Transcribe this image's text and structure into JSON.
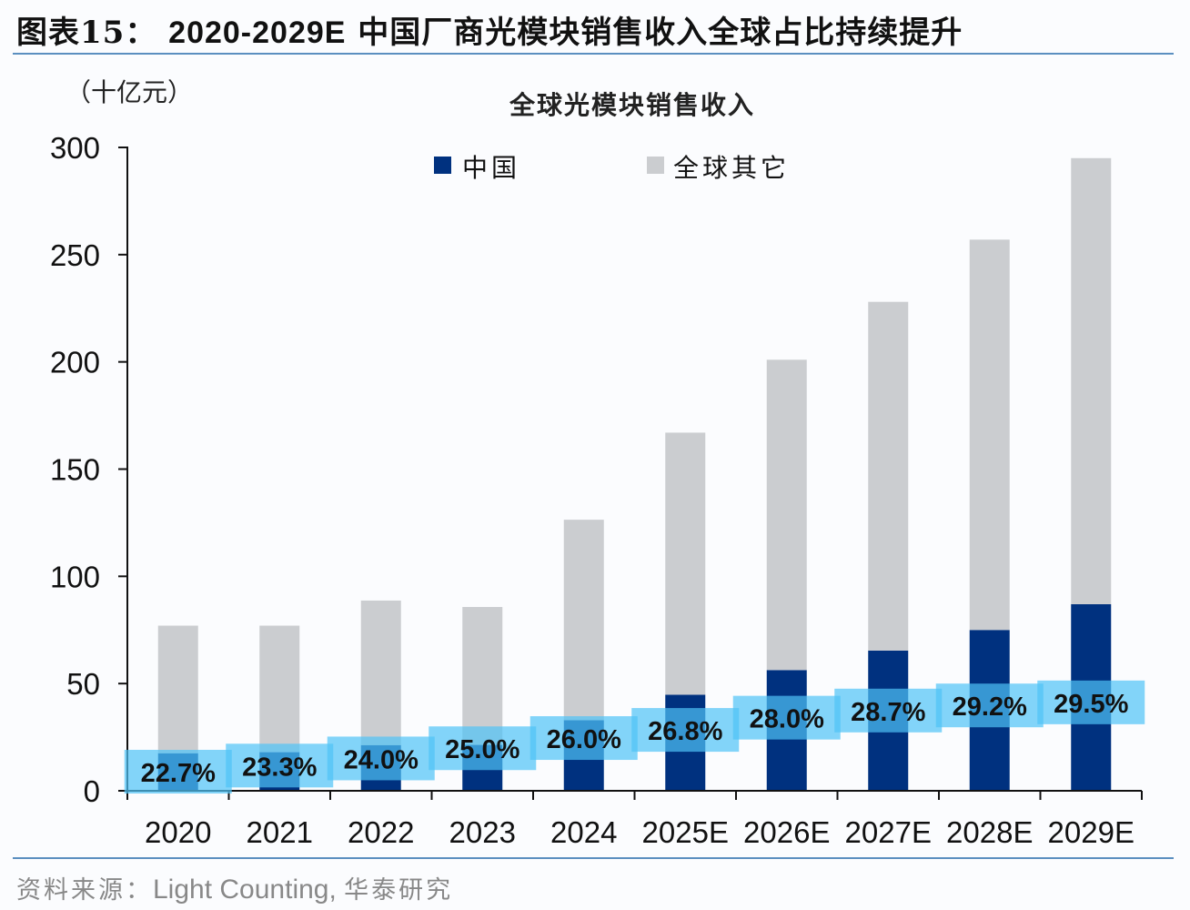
{
  "header": {
    "figure_label": "图表15：",
    "figure_title_year": "2020-2029E",
    "figure_title_text": "中国厂商光模块销售收入全球占比持续提升"
  },
  "footer": {
    "source_prefix": "资料来源：",
    "source_name": "Light Counting,",
    "source_suffix": "华泰研究"
  },
  "colors": {
    "china": "#00317f",
    "rest": "#cbcdd0",
    "label_box": "#4fc3f7",
    "rule": "#5b8fc0"
  },
  "chart_data": {
    "type": "bar",
    "stacked": true,
    "title": "全球光模块销售收入",
    "ylabel": "（十亿元）",
    "xlabel": "",
    "ylim": [
      0,
      300
    ],
    "yticks": [
      0,
      50,
      100,
      150,
      200,
      250,
      300
    ],
    "categories": [
      "2020",
      "2021",
      "2022",
      "2023",
      "2024",
      "2025E",
      "2026E",
      "2027E",
      "2028E",
      "2029E"
    ],
    "series": [
      {
        "name": "中国",
        "values": [
          17.5,
          18.0,
          21.3,
          21.4,
          32.9,
          44.8,
          56.3,
          65.4,
          75.0,
          87.0
        ]
      },
      {
        "name": "全球其它",
        "values": [
          59.5,
          59.0,
          67.4,
          64.3,
          93.5,
          122.2,
          144.7,
          162.6,
          182.0,
          208.0
        ]
      }
    ],
    "china_share_labels": [
      "22.7%",
      "23.3%",
      "24.0%",
      "25.0%",
      "26.0%",
      "26.8%",
      "28.0%",
      "28.7%",
      "29.2%",
      "29.5%"
    ],
    "china_share_values": [
      22.7,
      23.3,
      24.0,
      25.0,
      26.0,
      26.8,
      28.0,
      28.7,
      29.2,
      29.5
    ],
    "legend_position": "top"
  }
}
